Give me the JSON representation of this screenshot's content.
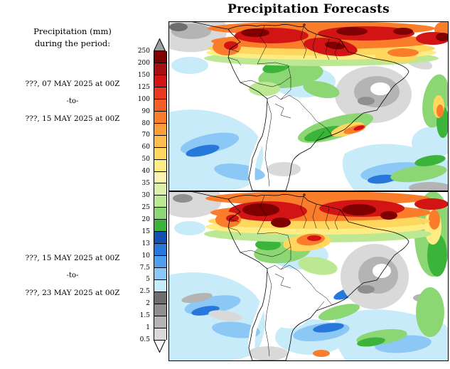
{
  "title": "Precipitation Forecasts",
  "sidebar": {
    "heading_line1": "Precipitation (mm)",
    "heading_line2": "during the period:",
    "periods": [
      {
        "start": "???, 07 MAY 2025 at 00Z",
        "separator": "-to-",
        "end": "???, 15 MAY 2025 at 00Z"
      },
      {
        "start": "???, 15 MAY 2025 at 00Z",
        "separator": "-to-",
        "end": "???, 23 MAY 2025 at 00Z"
      }
    ]
  },
  "colorbar": {
    "tick_labels": [
      "250",
      "200",
      "150",
      "125",
      "100",
      "90",
      "80",
      "70",
      "60",
      "50",
      "40",
      "35",
      "30",
      "25",
      "20",
      "15",
      "13",
      "10",
      "7.5",
      "5",
      "2.5",
      "2",
      "1.5",
      "1",
      "0.5"
    ],
    "band_colors_top_to_bottom": [
      "#7E0000",
      "#A81010",
      "#D31414",
      "#E93A1F",
      "#F55F24",
      "#F97D2B",
      "#FC9E3A",
      "#FEBD4C",
      "#FFD75E",
      "#FFEC82",
      "#F8F5B0",
      "#DDF0A8",
      "#BCE894",
      "#8CD674",
      "#3CB43C",
      "#1450B4",
      "#2878DC",
      "#50A0F0",
      "#8CC8F5",
      "#C8EBFA",
      "#6E6E6E",
      "#8F8F8F",
      "#B4B4B4",
      "#D9D9D9"
    ],
    "top_arrow_color": "#A0A0A0",
    "bottom_arrow_color": "#FFFFFF"
  },
  "maps": {
    "panel_count": 2
  }
}
